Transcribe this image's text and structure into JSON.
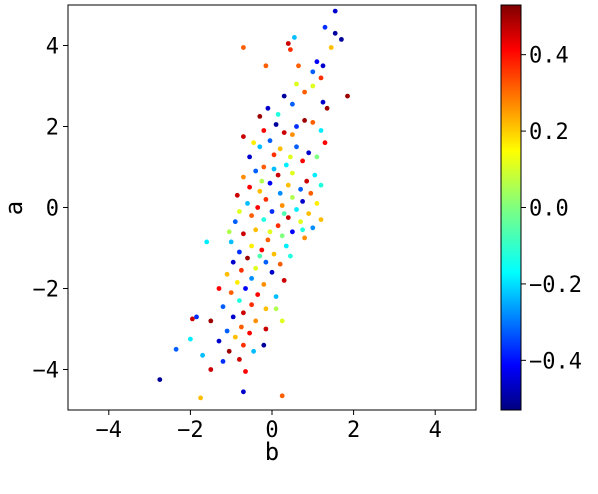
{
  "chart_data": {
    "type": "scatter",
    "title": "",
    "xlabel": "b",
    "ylabel": "a",
    "xlim": [
      -5,
      5
    ],
    "ylim": [
      -5,
      5
    ],
    "xticks": [
      -4,
      -2,
      0,
      2,
      4
    ],
    "yticks": [
      -4,
      -2,
      0,
      2,
      4
    ],
    "x_tick_labels": [
      "−4",
      "−2",
      "0",
      "2",
      "4"
    ],
    "y_tick_labels": [
      "−4",
      "−2",
      "0",
      "2",
      "4"
    ],
    "grid": false,
    "colormap": "jet",
    "colorbar": {
      "range": [
        -0.53,
        0.53
      ],
      "ticks": [
        -0.4,
        -0.2,
        0.0,
        0.2,
        0.4
      ],
      "tick_labels": [
        "−0.4",
        "−0.2",
        "0.0",
        "0.2",
        "0.4"
      ],
      "colors": [
        "#00007f",
        "#0000ff",
        "#007fff",
        "#00ffff",
        "#7fff7f",
        "#ffff00",
        "#ff7f00",
        "#ff0000",
        "#7f0000"
      ]
    },
    "points": [
      {
        "x": 1.55,
        "y": 4.85,
        "c": -0.45
      },
      {
        "x": 1.3,
        "y": 4.45,
        "c": -0.35
      },
      {
        "x": 1.55,
        "y": 4.3,
        "c": -0.5
      },
      {
        "x": 1.7,
        "y": 4.15,
        "c": -0.5
      },
      {
        "x": 1.45,
        "y": 3.95,
        "c": 0.2
      },
      {
        "x": 1.1,
        "y": 3.6,
        "c": -0.4
      },
      {
        "x": 1.25,
        "y": 3.5,
        "c": -0.45
      },
      {
        "x": 0.65,
        "y": 3.5,
        "c": 0.3
      },
      {
        "x": 0.45,
        "y": 3.9,
        "c": 0.35
      },
      {
        "x": 0.4,
        "y": 4.05,
        "c": 0.45
      },
      {
        "x": -0.7,
        "y": 3.95,
        "c": 0.3
      },
      {
        "x": -0.15,
        "y": 3.5,
        "c": 0.3
      },
      {
        "x": 0.55,
        "y": 4.2,
        "c": -0.2
      },
      {
        "x": 1.2,
        "y": 3.2,
        "c": 0.35
      },
      {
        "x": 1.0,
        "y": 3.0,
        "c": 0.1
      },
      {
        "x": 0.8,
        "y": 2.85,
        "c": 0.3
      },
      {
        "x": 1.85,
        "y": 2.75,
        "c": 0.5
      },
      {
        "x": 0.3,
        "y": 2.75,
        "c": -0.5
      },
      {
        "x": 0.5,
        "y": 2.55,
        "c": -0.3
      },
      {
        "x": 1.25,
        "y": 2.6,
        "c": -0.45
      },
      {
        "x": 1.35,
        "y": 2.45,
        "c": 0.5
      },
      {
        "x": -0.1,
        "y": 2.45,
        "c": -0.45
      },
      {
        "x": -0.3,
        "y": 2.25,
        "c": 0.5
      },
      {
        "x": 0.1,
        "y": 2.05,
        "c": -0.5
      },
      {
        "x": 0.8,
        "y": 2.15,
        "c": 0.5
      },
      {
        "x": 1.0,
        "y": 2.1,
        "c": 0.3
      },
      {
        "x": 1.2,
        "y": 1.9,
        "c": -0.15
      },
      {
        "x": -0.2,
        "y": 1.9,
        "c": 0.4
      },
      {
        "x": 0.3,
        "y": 1.85,
        "c": 0.45
      },
      {
        "x": 0.5,
        "y": 1.8,
        "c": 0.25
      },
      {
        "x": -0.7,
        "y": 1.75,
        "c": 0.45
      },
      {
        "x": -0.45,
        "y": 1.6,
        "c": 0.15
      },
      {
        "x": -0.3,
        "y": 1.5,
        "c": -0.2
      },
      {
        "x": 0.2,
        "y": 1.45,
        "c": 0.2
      },
      {
        "x": 0.6,
        "y": 1.5,
        "c": -0.3
      },
      {
        "x": 0.9,
        "y": 1.35,
        "c": -0.45
      },
      {
        "x": 0.05,
        "y": 1.3,
        "c": 0.35
      },
      {
        "x": -0.55,
        "y": 1.25,
        "c": -0.45
      },
      {
        "x": 0.75,
        "y": 1.15,
        "c": 0.4
      },
      {
        "x": 0.35,
        "y": 1.05,
        "c": -0.15
      },
      {
        "x": -0.2,
        "y": 1.0,
        "c": 0.3
      },
      {
        "x": 0.5,
        "y": 0.85,
        "c": 0.1
      },
      {
        "x": -0.4,
        "y": 0.9,
        "c": -0.3
      },
      {
        "x": 0.15,
        "y": 0.8,
        "c": 0.45
      },
      {
        "x": -0.7,
        "y": 0.75,
        "c": 0.25
      },
      {
        "x": 1.05,
        "y": 0.8,
        "c": -0.15
      },
      {
        "x": 0.85,
        "y": 0.65,
        "c": 0.45
      },
      {
        "x": -0.05,
        "y": 0.6,
        "c": -0.4
      },
      {
        "x": 0.4,
        "y": 0.55,
        "c": 0.2
      },
      {
        "x": -0.55,
        "y": 0.5,
        "c": 0.4
      },
      {
        "x": 0.7,
        "y": 0.45,
        "c": -0.3
      },
      {
        "x": -0.3,
        "y": 0.4,
        "c": 0.2
      },
      {
        "x": 0.2,
        "y": 0.35,
        "c": -0.25
      },
      {
        "x": 0.95,
        "y": 0.35,
        "c": 0.3
      },
      {
        "x": -0.85,
        "y": 0.3,
        "c": 0.45
      },
      {
        "x": 0.5,
        "y": 0.25,
        "c": 0.05
      },
      {
        "x": -0.15,
        "y": 0.2,
        "c": 0.35
      },
      {
        "x": 0.75,
        "y": 0.15,
        "c": -0.45
      },
      {
        "x": -0.6,
        "y": 0.1,
        "c": -0.2
      },
      {
        "x": 0.25,
        "y": 0.05,
        "c": 0.25
      },
      {
        "x": 1.1,
        "y": 0.1,
        "c": 0.15
      },
      {
        "x": -0.35,
        "y": 0.0,
        "c": 0.4
      },
      {
        "x": 0.6,
        "y": -0.05,
        "c": -0.15
      },
      {
        "x": -0.8,
        "y": -0.1,
        "c": 0.1
      },
      {
        "x": 0.0,
        "y": -0.1,
        "c": -0.35
      },
      {
        "x": 0.9,
        "y": -0.15,
        "c": 0.2
      },
      {
        "x": -0.5,
        "y": -0.2,
        "c": 0.3
      },
      {
        "x": 0.4,
        "y": -0.25,
        "c": 0.45
      },
      {
        "x": -0.2,
        "y": -0.3,
        "c": -0.1
      },
      {
        "x": 0.7,
        "y": -0.35,
        "c": 0.1
      },
      {
        "x": -0.9,
        "y": -0.35,
        "c": -0.3
      },
      {
        "x": 0.15,
        "y": -0.45,
        "c": 0.35
      },
      {
        "x": 1.0,
        "y": -0.5,
        "c": -0.25
      },
      {
        "x": -0.4,
        "y": -0.55,
        "c": 0.2
      },
      {
        "x": 0.5,
        "y": -0.6,
        "c": -0.4
      },
      {
        "x": -0.7,
        "y": -0.65,
        "c": 0.45
      },
      {
        "x": 0.25,
        "y": -0.7,
        "c": 0.0
      },
      {
        "x": -0.1,
        "y": -0.8,
        "c": 0.3
      },
      {
        "x": 0.8,
        "y": -0.75,
        "c": 0.25
      },
      {
        "x": -1.0,
        "y": -0.85,
        "c": -0.2
      },
      {
        "x": -0.5,
        "y": -0.95,
        "c": 0.15
      },
      {
        "x": 0.35,
        "y": -0.95,
        "c": -0.15
      },
      {
        "x": -0.25,
        "y": -1.05,
        "c": 0.4
      },
      {
        "x": -0.8,
        "y": -1.1,
        "c": -0.35
      },
      {
        "x": 0.05,
        "y": -1.15,
        "c": 0.2
      },
      {
        "x": -1.6,
        "y": -0.85,
        "c": -0.15
      },
      {
        "x": -0.6,
        "y": -1.25,
        "c": 0.5
      },
      {
        "x": -0.15,
        "y": -1.35,
        "c": -0.3
      },
      {
        "x": -0.95,
        "y": -1.35,
        "c": -0.45
      },
      {
        "x": 0.2,
        "y": -1.4,
        "c": 0.3
      },
      {
        "x": -0.4,
        "y": -1.5,
        "c": 0.1
      },
      {
        "x": -0.75,
        "y": -1.55,
        "c": 0.35
      },
      {
        "x": 0.0,
        "y": -1.6,
        "c": -0.45
      },
      {
        "x": -1.1,
        "y": -1.65,
        "c": 0.2
      },
      {
        "x": -0.5,
        "y": -1.75,
        "c": -0.25
      },
      {
        "x": 0.3,
        "y": -1.8,
        "c": 0.45
      },
      {
        "x": -0.85,
        "y": -1.85,
        "c": 0.15
      },
      {
        "x": -0.2,
        "y": -1.9,
        "c": 0.25
      },
      {
        "x": -0.65,
        "y": -2.0,
        "c": -0.4
      },
      {
        "x": -1.0,
        "y": -2.1,
        "c": 0.3
      },
      {
        "x": -0.35,
        "y": -2.15,
        "c": 0.4
      },
      {
        "x": 0.1,
        "y": -2.2,
        "c": -0.2
      },
      {
        "x": -0.8,
        "y": -2.3,
        "c": -0.1
      },
      {
        "x": -0.5,
        "y": -2.4,
        "c": 0.35
      },
      {
        "x": -1.2,
        "y": -2.45,
        "c": -0.3
      },
      {
        "x": -0.15,
        "y": -2.5,
        "c": 0.2
      },
      {
        "x": -0.7,
        "y": -2.6,
        "c": 0.45
      },
      {
        "x": -0.95,
        "y": -2.7,
        "c": -0.45
      },
      {
        "x": -0.4,
        "y": -2.8,
        "c": 0.25
      },
      {
        "x": 0.25,
        "y": -2.8,
        "c": 0.1
      },
      {
        "x": -1.5,
        "y": -2.8,
        "c": 0.5
      },
      {
        "x": -0.75,
        "y": -2.95,
        "c": 0.3
      },
      {
        "x": -1.1,
        "y": -3.05,
        "c": -0.3
      },
      {
        "x": -0.55,
        "y": -3.1,
        "c": 0.4
      },
      {
        "x": -0.9,
        "y": -3.2,
        "c": 0.2
      },
      {
        "x": -1.3,
        "y": -3.3,
        "c": -0.45
      },
      {
        "x": -0.7,
        "y": -3.4,
        "c": 0.35
      },
      {
        "x": -0.2,
        "y": -3.4,
        "c": -0.5
      },
      {
        "x": -1.05,
        "y": -3.55,
        "c": 0.5
      },
      {
        "x": -1.7,
        "y": -3.65,
        "c": -0.2
      },
      {
        "x": -0.8,
        "y": -3.75,
        "c": 0.45
      },
      {
        "x": -1.2,
        "y": -3.8,
        "c": -0.35
      },
      {
        "x": -2.35,
        "y": -3.5,
        "c": -0.3
      },
      {
        "x": -2.0,
        "y": -3.25,
        "c": -0.15
      },
      {
        "x": -1.95,
        "y": -2.75,
        "c": 0.45
      },
      {
        "x": -1.85,
        "y": -2.7,
        "c": -0.35
      },
      {
        "x": -1.5,
        "y": -4.0,
        "c": 0.45
      },
      {
        "x": -2.75,
        "y": -4.25,
        "c": -0.5
      },
      {
        "x": -0.65,
        "y": -4.05,
        "c": 0.4
      },
      {
        "x": -0.7,
        "y": -4.55,
        "c": -0.45
      },
      {
        "x": 0.25,
        "y": -4.65,
        "c": 0.3
      },
      {
        "x": -1.75,
        "y": -4.7,
        "c": 0.2
      },
      {
        "x": 0.6,
        "y": 3.05,
        "c": 0.1
      },
      {
        "x": 1.0,
        "y": 3.35,
        "c": -0.3
      },
      {
        "x": 0.15,
        "y": 2.3,
        "c": -0.1
      },
      {
        "x": 1.3,
        "y": 1.6,
        "c": 0.4
      },
      {
        "x": 1.1,
        "y": 1.25,
        "c": 0.0
      },
      {
        "x": 0.6,
        "y": 2.0,
        "c": -0.35
      },
      {
        "x": -0.05,
        "y": 1.65,
        "c": -0.3
      },
      {
        "x": 0.45,
        "y": 1.25,
        "c": 0.1
      },
      {
        "x": 1.2,
        "y": 0.55,
        "c": -0.1
      },
      {
        "x": 0.05,
        "y": 0.95,
        "c": -0.2
      },
      {
        "x": -0.25,
        "y": 0.65,
        "c": 0.05
      },
      {
        "x": 0.3,
        "y": -0.15,
        "c": -0.05
      },
      {
        "x": 0.75,
        "y": -0.55,
        "c": -0.1
      },
      {
        "x": -0.05,
        "y": -0.6,
        "c": 0.1
      },
      {
        "x": 1.2,
        "y": -0.3,
        "c": 0.2
      },
      {
        "x": 0.45,
        "y": -1.2,
        "c": -0.1
      },
      {
        "x": -0.3,
        "y": -1.2,
        "c": -0.05
      },
      {
        "x": -1.05,
        "y": -0.6,
        "c": 0.05
      },
      {
        "x": -1.3,
        "y": -2.0,
        "c": 0.4
      },
      {
        "x": -0.45,
        "y": -3.55,
        "c": -0.2
      },
      {
        "x": -0.15,
        "y": -3.0,
        "c": 0.45
      },
      {
        "x": 0.1,
        "y": -2.5,
        "c": 0.05
      }
    ]
  }
}
